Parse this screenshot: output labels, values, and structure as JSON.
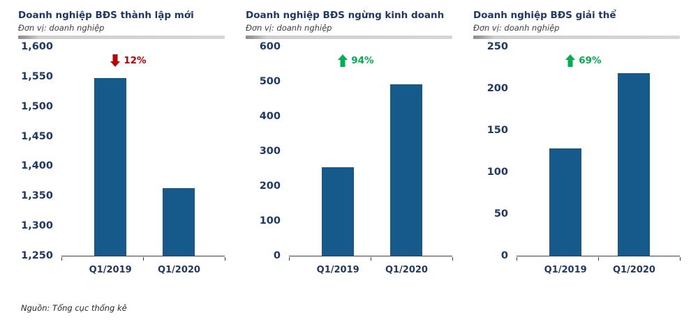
{
  "page": {
    "source": "Nguồn: Tổng cục thống kê"
  },
  "colors": {
    "bar": "#155A8A",
    "title": "#1F3864",
    "decrease": "#C00000",
    "increase": "#00B050"
  },
  "chart_data": [
    {
      "type": "bar",
      "title": "Doanh nghiệp BĐS thành lập mới",
      "subtitle": "Đơn vị: doanh nghiệp",
      "categories": [
        "Q1/2019",
        "Q1/2020"
      ],
      "values": [
        1548,
        1363
      ],
      "ylim": [
        1250,
        1600
      ],
      "yticks": [
        {
          "v": 1600,
          "label": "1,600"
        },
        {
          "v": 1550,
          "label": "1,550"
        },
        {
          "v": 1500,
          "label": "1,500"
        },
        {
          "v": 1450,
          "label": "1,450"
        },
        {
          "v": 1400,
          "label": "1,400"
        },
        {
          "v": 1350,
          "label": "1,350"
        },
        {
          "v": 1300,
          "label": "1,300"
        },
        {
          "v": 1250,
          "label": "1,250"
        }
      ],
      "grid": false,
      "legend": false,
      "bar_color": "#155A8A",
      "annotation": {
        "label": "12%",
        "direction": "down",
        "color": "#C00000"
      }
    },
    {
      "type": "bar",
      "title": "Doanh nghiệp BĐS ngừng kinh doanh",
      "subtitle": "Đơn vị: doanh nghiệp",
      "categories": [
        "Q1/2019",
        "Q1/2020"
      ],
      "values": [
        255,
        493
      ],
      "ylim": [
        0,
        600
      ],
      "yticks": [
        {
          "v": 600,
          "label": "600"
        },
        {
          "v": 500,
          "label": "500"
        },
        {
          "v": 400,
          "label": "400"
        },
        {
          "v": 300,
          "label": "300"
        },
        {
          "v": 200,
          "label": "200"
        },
        {
          "v": 100,
          "label": "100"
        },
        {
          "v": 0,
          "label": "0"
        }
      ],
      "grid": false,
      "legend": false,
      "bar_color": "#155A8A",
      "annotation": {
        "label": "94%",
        "direction": "up",
        "color": "#00B050"
      }
    },
    {
      "type": "bar",
      "title": "Doanh nghiệp BĐS giải thể",
      "subtitle": "Đơn vị: doanh nghiệp",
      "categories": [
        "Q1/2019",
        "Q1/2020"
      ],
      "values": [
        128,
        218
      ],
      "ylim": [
        0,
        250
      ],
      "yticks": [
        {
          "v": 250,
          "label": "250"
        },
        {
          "v": 200,
          "label": "200"
        },
        {
          "v": 150,
          "label": "150"
        },
        {
          "v": 100,
          "label": "100"
        },
        {
          "v": 50,
          "label": "50"
        },
        {
          "v": 0,
          "label": "0"
        }
      ],
      "grid": false,
      "legend": false,
      "bar_color": "#155A8A",
      "annotation": {
        "label": "69%",
        "direction": "up",
        "color": "#00B050"
      }
    }
  ]
}
